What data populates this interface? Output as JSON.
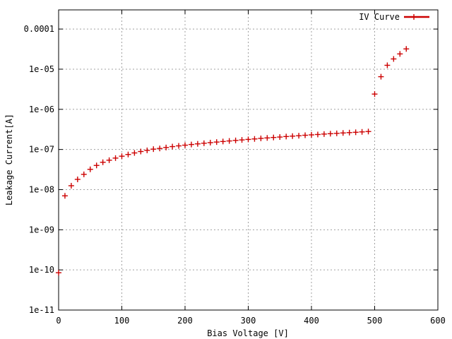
{
  "chart_data": {
    "type": "scatter",
    "xlabel": "Bias Voltage [V]",
    "ylabel": "Leakage Current[A]",
    "xlim": [
      0,
      600
    ],
    "ylim": [
      1e-11,
      0.0003
    ],
    "yscale": "log",
    "grid": true,
    "legend_position": "top-right",
    "marker": "plus",
    "x_ticks": [
      0,
      100,
      200,
      300,
      400,
      500,
      600
    ],
    "x_tick_labels": [
      "0",
      "100",
      "200",
      "300",
      "400",
      "500",
      "600"
    ],
    "y_ticks": [
      1e-11,
      1e-10,
      1e-09,
      1e-08,
      1e-07,
      1e-06,
      1e-05,
      0.0001
    ],
    "y_tick_labels": [
      "1e-11",
      "1e-10",
      "1e-09",
      "1e-08",
      "1e-07",
      "1e-06",
      "1e-05",
      "0.0001"
    ],
    "series": [
      {
        "name": "IV Curve",
        "color": "#cc0000",
        "x": [
          0,
          10,
          20,
          30,
          40,
          50,
          60,
          70,
          80,
          90,
          100,
          110,
          120,
          130,
          140,
          150,
          160,
          170,
          180,
          190,
          200,
          210,
          220,
          230,
          240,
          250,
          260,
          270,
          280,
          290,
          300,
          310,
          320,
          330,
          340,
          350,
          360,
          370,
          380,
          390,
          400,
          410,
          420,
          430,
          440,
          450,
          460,
          470,
          480,
          490,
          500,
          510,
          520,
          530,
          540,
          550
        ],
        "y": [
          8.5e-11,
          7e-09,
          1.25e-08,
          1.8e-08,
          2.4e-08,
          3.2e-08,
          4e-08,
          4.8e-08,
          5.4e-08,
          6.1e-08,
          6.8e-08,
          7.5e-08,
          8.2e-08,
          8.9e-08,
          9.5e-08,
          1.02e-07,
          1.06e-07,
          1.12e-07,
          1.18e-07,
          1.23e-07,
          1.28e-07,
          1.33e-07,
          1.38e-07,
          1.43e-07,
          1.48e-07,
          1.53e-07,
          1.58e-07,
          1.63e-07,
          1.68e-07,
          1.73e-07,
          1.78e-07,
          1.83e-07,
          1.89e-07,
          1.94e-07,
          1.99e-07,
          2.04e-07,
          2.1e-07,
          2.15e-07,
          2.2e-07,
          2.26e-07,
          2.31e-07,
          2.36e-07,
          2.42e-07,
          2.47e-07,
          2.52e-07,
          2.58e-07,
          2.63e-07,
          2.68e-07,
          2.74e-07,
          2.8e-07,
          2.4e-06,
          6.5e-06,
          1.25e-05,
          1.8e-05,
          2.4e-05,
          3.2e-05
        ]
      }
    ]
  }
}
